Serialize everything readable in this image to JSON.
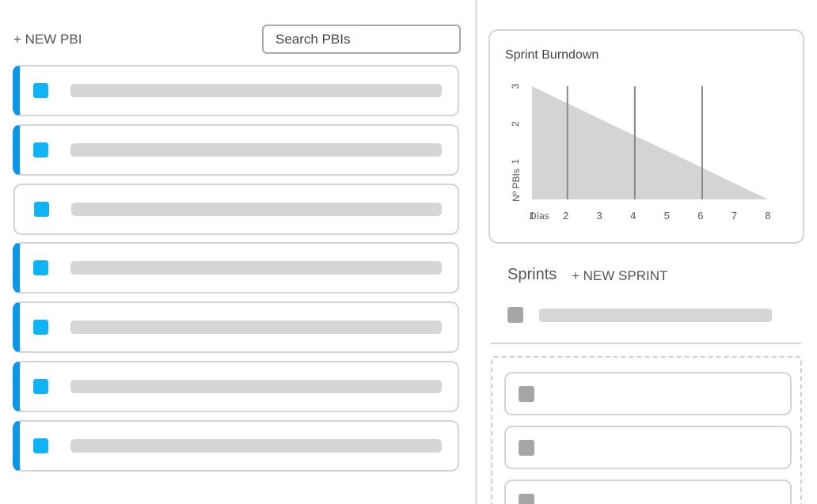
{
  "backlog": {
    "new_pbi_label": "+ NEW PBI",
    "search": {
      "placeholder": "Search PBIs",
      "value": ""
    },
    "items": [
      {
        "accent": true
      },
      {
        "accent": true
      },
      {
        "accent": false
      },
      {
        "accent": true
      },
      {
        "accent": true
      },
      {
        "accent": true
      },
      {
        "accent": true
      }
    ]
  },
  "burndown": {
    "title": "Sprint Burndown"
  },
  "chart_data": {
    "type": "area",
    "title": "Sprint Burndown",
    "xlabel": "Días",
    "ylabel": "Nº PBIs",
    "x": [
      1,
      2,
      3,
      4,
      5,
      6,
      7,
      8
    ],
    "y": [
      3,
      2.57,
      2.14,
      1.71,
      1.29,
      0.86,
      0.43,
      0
    ],
    "xlim": [
      1,
      8
    ],
    "ylim": [
      0,
      3
    ],
    "yticks": [
      1,
      2,
      3
    ],
    "sprint_markers": [
      2,
      4,
      6
    ],
    "fill_color": "#d4d4d4",
    "marker_color": "#888888"
  },
  "sprints": {
    "title": "Sprints",
    "new_sprint_label": "+ NEW SPRINT",
    "items": [
      {
        "id": 1
      }
    ]
  },
  "drop_zone": {
    "cards": [
      {
        "id": 1
      },
      {
        "id": 2
      },
      {
        "id": 3
      }
    ]
  },
  "colors": {
    "accent": "#0b96e6",
    "checkbox": "#10b4f4",
    "placeholder_bar": "#d6d6d6",
    "border": "#d4d4d4"
  }
}
